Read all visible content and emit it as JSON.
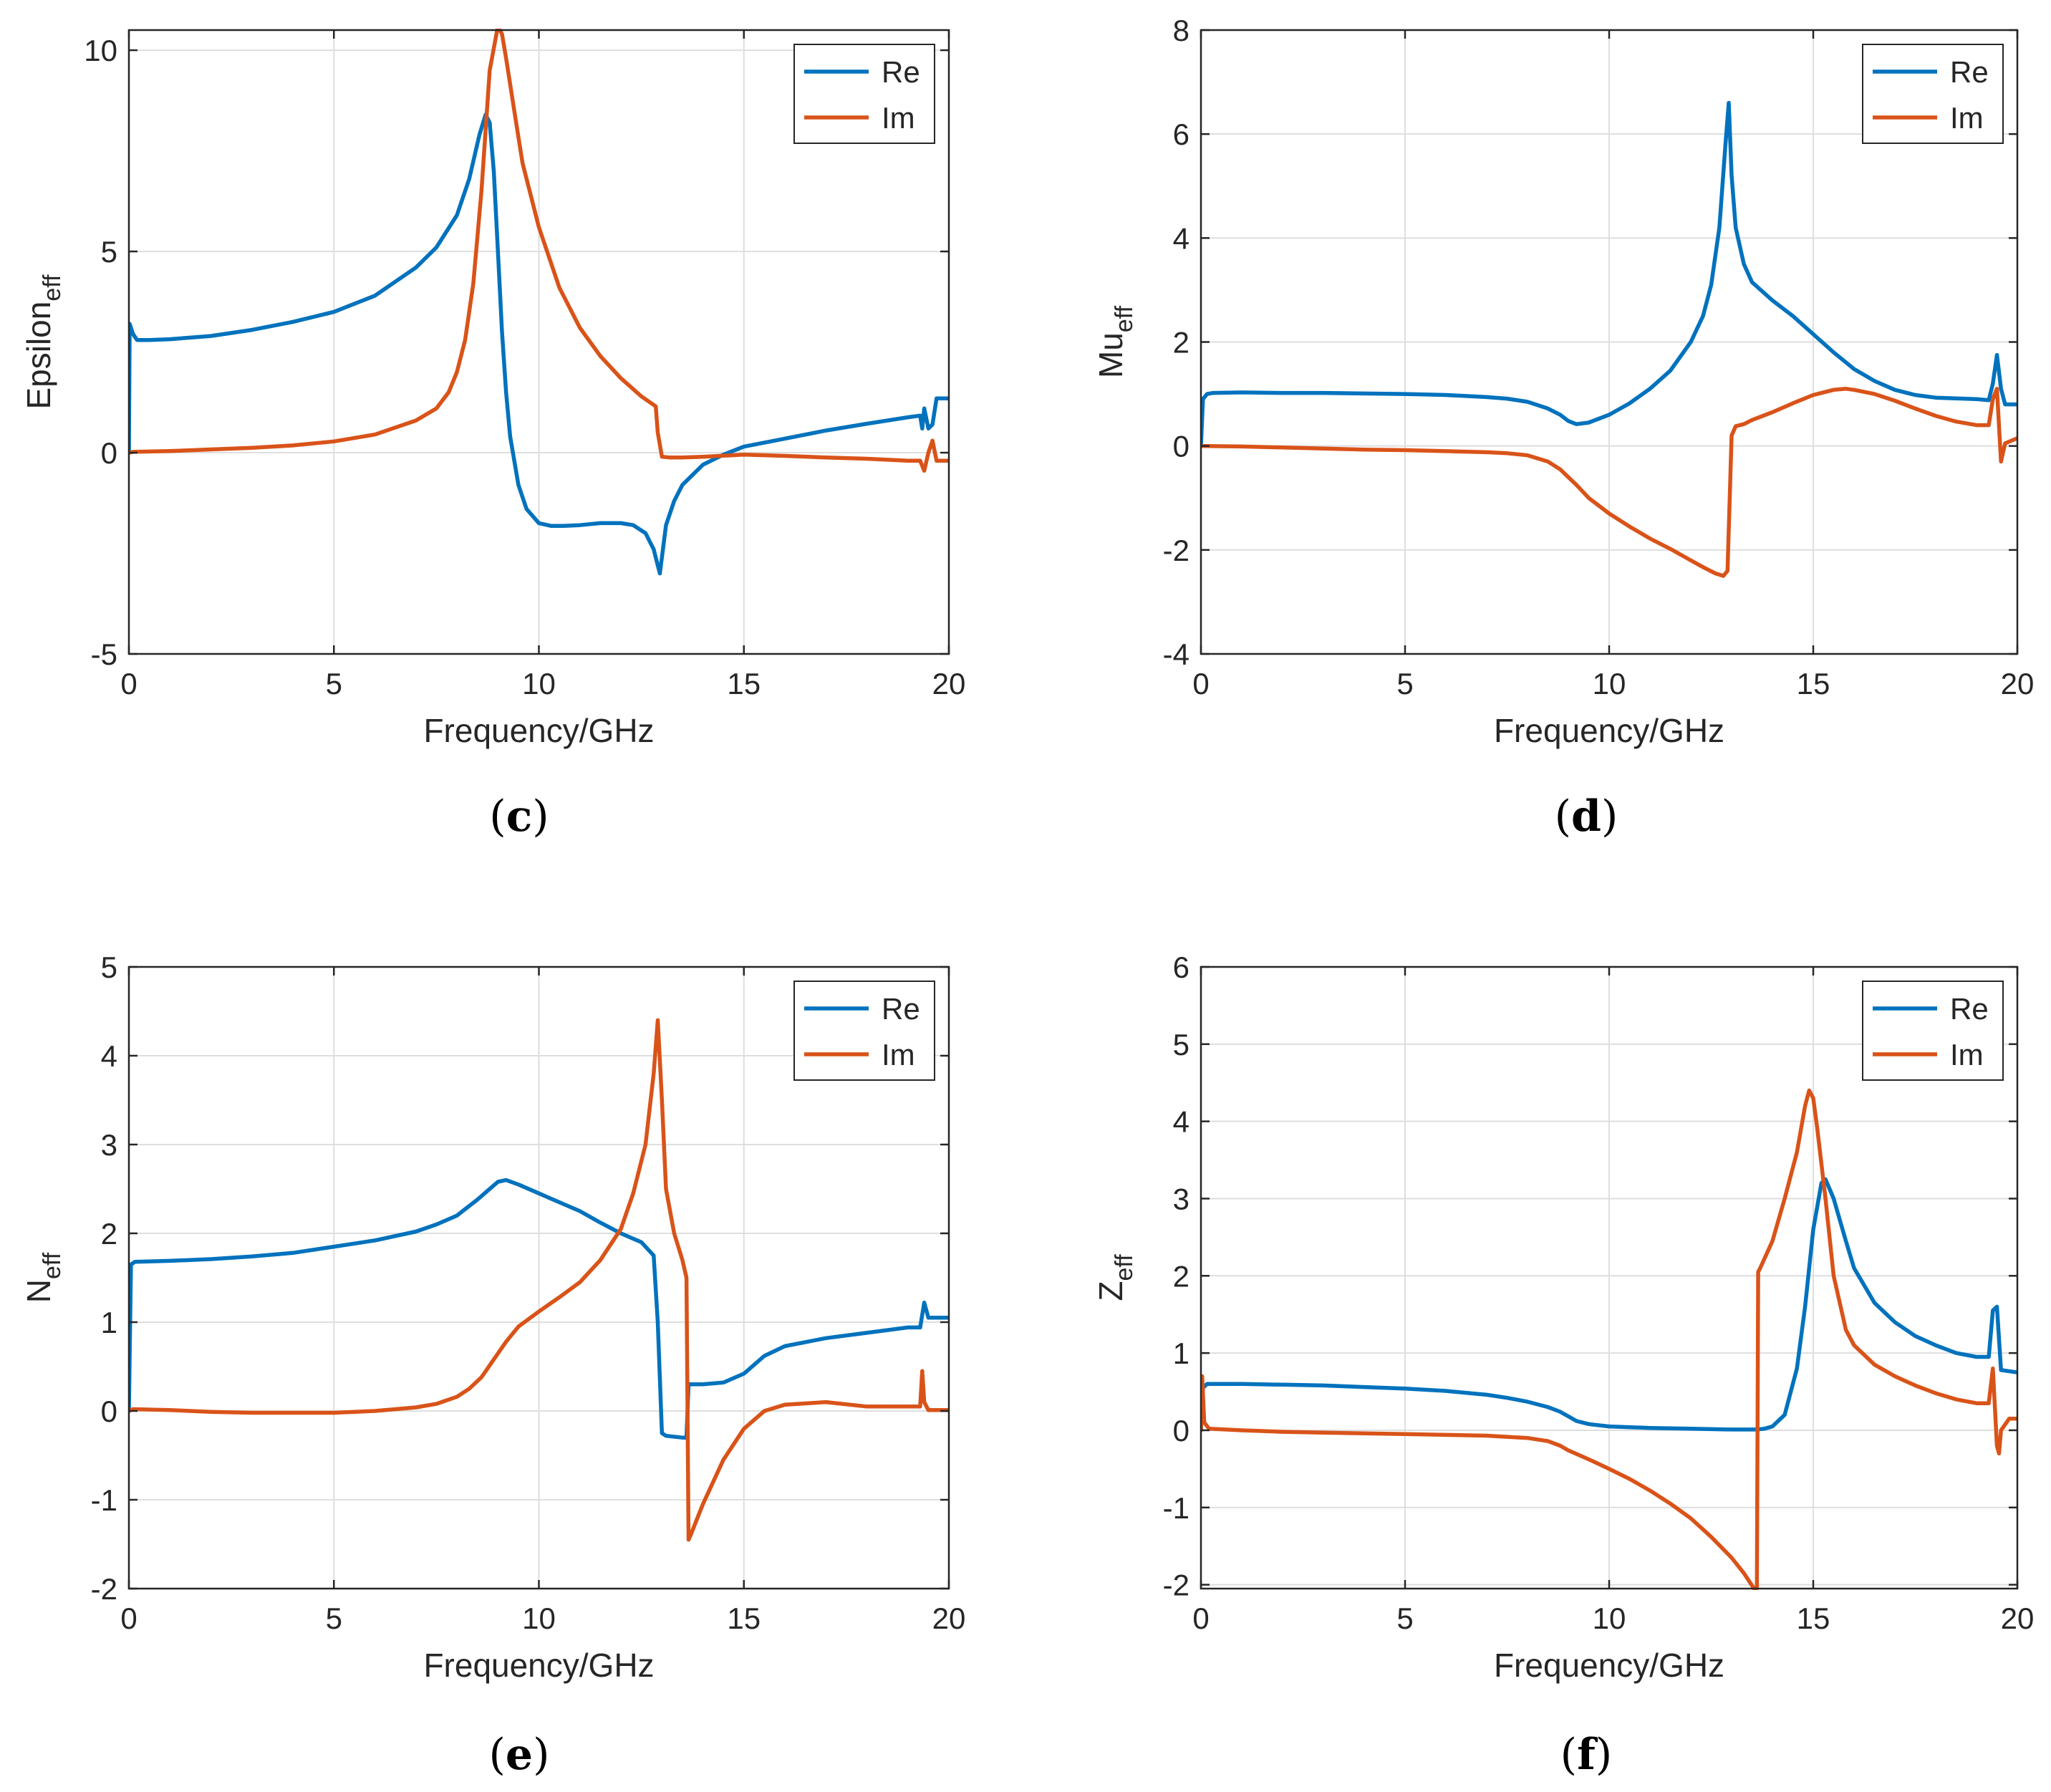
{
  "colors": {
    "re": "#0072BD",
    "im": "#D95319",
    "grid": "#dedede",
    "axis": "#262626"
  },
  "chart_data": [
    {
      "type": "line",
      "panel": "c",
      "ylabel_main": "Epsilon",
      "ylabel_sub": "eff",
      "xlabel": "Frequency/GHz",
      "xlim": [
        0,
        20
      ],
      "ylim": [
        -5,
        10.5
      ],
      "xticks": [
        0,
        5,
        10,
        15,
        20
      ],
      "yticks": [
        -5,
        0,
        5,
        10
      ],
      "ytick_labels": [
        "-5",
        "0",
        "5",
        "10"
      ],
      "legend": [
        "Re",
        "Im"
      ],
      "series": [
        {
          "name": "Re",
          "x": [
            0,
            0.02,
            0.1,
            0.2,
            0.5,
            1,
            2,
            3,
            4,
            5,
            6,
            7,
            7.5,
            8,
            8.3,
            8.55,
            8.7,
            8.8,
            8.9,
            9,
            9.1,
            9.2,
            9.3,
            9.5,
            9.7,
            10,
            10.3,
            10.6,
            11,
            11.5,
            12,
            12.3,
            12.6,
            12.8,
            12.9,
            12.95,
            13,
            13.1,
            13.3,
            13.5,
            14,
            14.5,
            15,
            16,
            17,
            18,
            19,
            19.3,
            19.35,
            19.4,
            19.5,
            19.6,
            19.7,
            20
          ],
          "y": [
            0,
            3.2,
            2.95,
            2.8,
            2.8,
            2.82,
            2.9,
            3.05,
            3.25,
            3.5,
            3.9,
            4.6,
            5.1,
            5.9,
            6.8,
            7.9,
            8.4,
            8.2,
            7.0,
            5.0,
            3.0,
            1.5,
            0.4,
            -0.8,
            -1.4,
            -1.75,
            -1.82,
            -1.82,
            -1.8,
            -1.75,
            -1.75,
            -1.8,
            -2.0,
            -2.4,
            -2.8,
            -3.0,
            -2.6,
            -1.8,
            -1.2,
            -0.8,
            -0.3,
            -0.05,
            0.15,
            0.35,
            0.55,
            0.72,
            0.88,
            0.92,
            0.6,
            1.1,
            0.6,
            0.7,
            1.35,
            1.35
          ]
        },
        {
          "name": "Im",
          "x": [
            0,
            0.1,
            1,
            2,
            3,
            4,
            5,
            6,
            7,
            7.5,
            7.8,
            8,
            8.2,
            8.4,
            8.6,
            8.8,
            9,
            9.1,
            9.2,
            9.4,
            9.6,
            10,
            10.5,
            11,
            11.5,
            12,
            12.5,
            12.85,
            12.9,
            13,
            13.2,
            13.5,
            14,
            15,
            16,
            17,
            18,
            19,
            19.3,
            19.4,
            19.5,
            19.6,
            19.7,
            20
          ],
          "y": [
            0,
            0.02,
            0.04,
            0.08,
            0.12,
            0.18,
            0.28,
            0.45,
            0.8,
            1.1,
            1.5,
            2.0,
            2.8,
            4.2,
            6.5,
            9.5,
            10.6,
            10.4,
            9.8,
            8.5,
            7.2,
            5.6,
            4.1,
            3.1,
            2.4,
            1.85,
            1.4,
            1.15,
            0.5,
            -0.1,
            -0.12,
            -0.12,
            -0.1,
            -0.05,
            -0.08,
            -0.12,
            -0.15,
            -0.2,
            -0.2,
            -0.45,
            0.0,
            0.3,
            -0.2,
            -0.2
          ]
        }
      ]
    },
    {
      "type": "line",
      "panel": "d",
      "ylabel_main": "Mu",
      "ylabel_sub": "eff",
      "xlabel": "Frequency/GHz",
      "xlim": [
        0,
        20
      ],
      "ylim": [
        -4,
        8
      ],
      "xticks": [
        0,
        5,
        10,
        15,
        20
      ],
      "yticks": [
        -4,
        -2,
        0,
        2,
        4,
        6,
        8
      ],
      "ytick_labels": [
        "-4",
        "-2",
        "0",
        "2",
        "4",
        "6",
        "8"
      ],
      "legend": [
        "Re",
        "Im"
      ],
      "series": [
        {
          "name": "Re",
          "x": [
            0,
            0.05,
            0.15,
            0.3,
            1,
            2,
            3,
            4,
            5,
            6,
            7,
            7.5,
            8,
            8.5,
            8.8,
            9,
            9.2,
            9.5,
            10,
            10.5,
            11,
            11.5,
            12,
            12.3,
            12.5,
            12.7,
            12.85,
            12.93,
            13.0,
            13.1,
            13.3,
            13.5,
            14,
            14.5,
            15,
            15.5,
            16,
            16.5,
            17,
            17.5,
            18,
            19,
            19.3,
            19.4,
            19.5,
            19.6,
            19.7,
            20
          ],
          "y": [
            0,
            0.9,
            1.0,
            1.02,
            1.03,
            1.02,
            1.02,
            1.01,
            1.0,
            0.98,
            0.94,
            0.91,
            0.85,
            0.72,
            0.6,
            0.48,
            0.42,
            0.45,
            0.6,
            0.82,
            1.1,
            1.45,
            2.0,
            2.5,
            3.1,
            4.2,
            5.8,
            6.6,
            5.2,
            4.2,
            3.5,
            3.15,
            2.8,
            2.5,
            2.15,
            1.8,
            1.48,
            1.25,
            1.08,
            0.98,
            0.93,
            0.9,
            0.88,
            1.2,
            1.75,
            1.1,
            0.8,
            0.8
          ]
        },
        {
          "name": "Im",
          "x": [
            0,
            0.1,
            1,
            2,
            3,
            4,
            5,
            6,
            7,
            7.5,
            8,
            8.5,
            8.8,
            9,
            9.2,
            9.5,
            10,
            10.5,
            11,
            11.5,
            12,
            12.3,
            12.6,
            12.8,
            12.9,
            13.0,
            13.1,
            13.3,
            13.5,
            14,
            14.5,
            15,
            15.5,
            15.8,
            16,
            16.5,
            17,
            17.5,
            18,
            18.5,
            19,
            19.3,
            19.4,
            19.5,
            19.6,
            19.7,
            20
          ],
          "y": [
            0,
            0,
            -0.01,
            -0.03,
            -0.05,
            -0.07,
            -0.08,
            -0.1,
            -0.12,
            -0.14,
            -0.18,
            -0.3,
            -0.45,
            -0.6,
            -0.75,
            -1.0,
            -1.3,
            -1.55,
            -1.78,
            -1.98,
            -2.2,
            -2.33,
            -2.45,
            -2.5,
            -2.4,
            0.2,
            0.38,
            0.42,
            0.5,
            0.65,
            0.82,
            0.98,
            1.08,
            1.1,
            1.08,
            1.0,
            0.87,
            0.72,
            0.58,
            0.47,
            0.4,
            0.4,
            0.9,
            1.1,
            -0.3,
            0.05,
            0.15
          ]
        }
      ]
    },
    {
      "type": "line",
      "panel": "e",
      "ylabel_main": "N",
      "ylabel_sub": "eff",
      "xlabel": "Frequency/GHz",
      "xlim": [
        0,
        20
      ],
      "ylim": [
        -2,
        5
      ],
      "xticks": [
        0,
        5,
        10,
        15,
        20
      ],
      "yticks": [
        -2,
        -1,
        0,
        1,
        2,
        3,
        4,
        5
      ],
      "ytick_labels": [
        "-2",
        "-1",
        "0",
        "1",
        "2",
        "3",
        "4",
        "5"
      ],
      "legend": [
        "Re",
        "Im"
      ],
      "series": [
        {
          "name": "Re",
          "x": [
            0,
            0.05,
            0.15,
            1,
            2,
            3,
            4,
            5,
            6,
            7,
            7.5,
            8,
            8.5,
            8.8,
            9,
            9.2,
            9.5,
            10,
            10.5,
            11,
            11.5,
            12,
            12.5,
            12.8,
            12.9,
            13.0,
            13.1,
            13.5,
            13.6,
            13.65,
            14,
            14.5,
            15,
            15.5,
            16,
            17,
            18,
            19,
            19.3,
            19.4,
            19.5,
            20
          ],
          "y": [
            0,
            1.65,
            1.68,
            1.69,
            1.71,
            1.74,
            1.78,
            1.85,
            1.92,
            2.02,
            2.1,
            2.2,
            2.38,
            2.5,
            2.58,
            2.6,
            2.55,
            2.45,
            2.35,
            2.25,
            2.12,
            2.0,
            1.9,
            1.75,
            1.0,
            -0.25,
            -0.28,
            -0.3,
            -0.3,
            0.3,
            0.3,
            0.32,
            0.42,
            0.62,
            0.73,
            0.82,
            0.88,
            0.94,
            0.94,
            1.22,
            1.05,
            1.05
          ]
        },
        {
          "name": "Im",
          "x": [
            0,
            0.1,
            1,
            2,
            3,
            4,
            5,
            6,
            7,
            7.5,
            8,
            8.3,
            8.6,
            8.9,
            9.2,
            9.5,
            10,
            10.5,
            11,
            11.5,
            12,
            12.3,
            12.6,
            12.8,
            12.9,
            13.0,
            13.1,
            13.3,
            13.5,
            13.6,
            13.65,
            13.7,
            14,
            14.5,
            15,
            15.5,
            16,
            17,
            18,
            19,
            19.3,
            19.35,
            19.4,
            19.5,
            20
          ],
          "y": [
            0,
            0.02,
            0.01,
            -0.01,
            -0.02,
            -0.02,
            -0.02,
            0,
            0.04,
            0.08,
            0.16,
            0.25,
            0.38,
            0.58,
            0.78,
            0.95,
            1.12,
            1.28,
            1.45,
            1.7,
            2.05,
            2.45,
            3.0,
            3.8,
            4.4,
            3.5,
            2.5,
            2.0,
            1.7,
            1.5,
            -1.45,
            -1.4,
            -1.05,
            -0.55,
            -0.2,
            0,
            0.07,
            0.1,
            0.05,
            0.05,
            0.05,
            0.45,
            0.1,
            0.01,
            0.01
          ]
        }
      ]
    },
    {
      "type": "line",
      "panel": "f",
      "ylabel_main": "Z",
      "ylabel_sub": "eff",
      "xlabel": "Frequency/GHz",
      "xlim": [
        0,
        20
      ],
      "ylim": [
        -2.05,
        6
      ],
      "xticks": [
        0,
        5,
        10,
        15,
        20
      ],
      "yticks": [
        -2,
        -1,
        0,
        1,
        2,
        3,
        4,
        5,
        6
      ],
      "ytick_labels": [
        "-2",
        "-1",
        "0",
        "1",
        "2",
        "3",
        "4",
        "5",
        "6"
      ],
      "legend": [
        "Re",
        "Im"
      ],
      "series": [
        {
          "name": "Re",
          "x": [
            0,
            0.05,
            0.15,
            1,
            2,
            3,
            4,
            5,
            6,
            7,
            7.5,
            8,
            8.5,
            8.8,
            9,
            9.2,
            9.5,
            10,
            11,
            12,
            13,
            13.6,
            13.8,
            14,
            14.3,
            14.6,
            14.8,
            15.0,
            15.2,
            15.3,
            15.5,
            15.8,
            16,
            16.5,
            17,
            17.5,
            18,
            18.5,
            19,
            19.3,
            19.4,
            19.5,
            19.6,
            20
          ],
          "y": [
            0,
            0.55,
            0.6,
            0.6,
            0.59,
            0.58,
            0.56,
            0.54,
            0.51,
            0.46,
            0.42,
            0.37,
            0.3,
            0.24,
            0.18,
            0.12,
            0.08,
            0.05,
            0.03,
            0.02,
            0.01,
            0.01,
            0.02,
            0.05,
            0.2,
            0.8,
            1.6,
            2.6,
            3.2,
            3.25,
            3.0,
            2.45,
            2.1,
            1.65,
            1.4,
            1.22,
            1.1,
            1.0,
            0.95,
            0.95,
            1.55,
            1.6,
            0.78,
            0.75
          ]
        },
        {
          "name": "Im",
          "x": [
            0,
            0.03,
            0.08,
            0.2,
            1,
            2,
            3,
            4,
            5,
            6,
            7,
            8,
            8.5,
            8.8,
            9,
            9.3,
            9.6,
            10,
            10.5,
            11,
            11.5,
            12,
            12.5,
            13,
            13.3,
            13.55,
            13.62,
            13.65,
            13.7,
            14,
            14.3,
            14.6,
            14.8,
            14.9,
            15.0,
            15.1,
            15.3,
            15.5,
            15.8,
            16,
            16.5,
            17,
            17.5,
            18,
            18.5,
            19,
            19.3,
            19.4,
            19.5,
            19.55,
            19.6,
            19.8,
            20
          ],
          "y": [
            0,
            0.7,
            0.1,
            0.02,
            0,
            -0.02,
            -0.03,
            -0.04,
            -0.05,
            -0.06,
            -0.07,
            -0.1,
            -0.14,
            -0.2,
            -0.26,
            -0.33,
            -0.4,
            -0.5,
            -0.63,
            -0.78,
            -0.95,
            -1.14,
            -1.38,
            -1.65,
            -1.85,
            -2.05,
            -2.05,
            2.05,
            2.1,
            2.45,
            3.0,
            3.6,
            4.2,
            4.4,
            4.3,
            3.9,
            3.0,
            2.0,
            1.3,
            1.1,
            0.85,
            0.7,
            0.58,
            0.48,
            0.4,
            0.35,
            0.35,
            0.8,
            -0.2,
            -0.3,
            0.0,
            0.15,
            0.15
          ]
        }
      ]
    }
  ],
  "panel_labels": [
    "c",
    "d",
    "e",
    "f"
  ]
}
